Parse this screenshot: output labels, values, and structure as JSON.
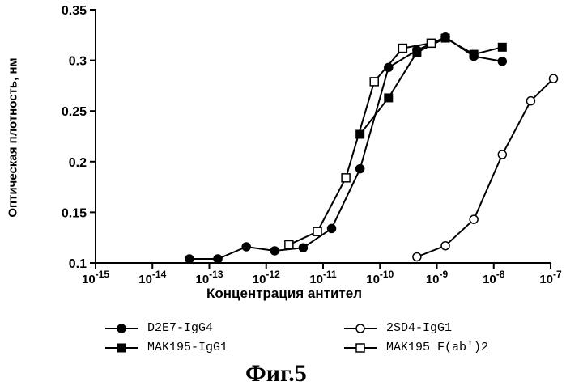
{
  "chart_data": {
    "type": "scatter",
    "xlabel": "Концентрация антител",
    "ylabel": "Оптическая плотность, нм",
    "xscale": "log",
    "xlim_exp": [
      -15,
      -7
    ],
    "x_ticks": [
      {
        "base": "10",
        "exp": "-15"
      },
      {
        "base": "10",
        "exp": "-14"
      },
      {
        "base": "10",
        "exp": "-13"
      },
      {
        "base": "10",
        "exp": "-12"
      },
      {
        "base": "10",
        "exp": "-11"
      },
      {
        "base": "10",
        "exp": "-10"
      },
      {
        "base": "10",
        "exp": "-9"
      },
      {
        "base": "10",
        "exp": "-8"
      },
      {
        "base": "10",
        "exp": "-7"
      }
    ],
    "ylim": [
      0.1,
      0.35
    ],
    "y_ticks": [
      "0.1",
      "0.15",
      "0.2",
      "0.25",
      "0.3",
      "0.35"
    ],
    "grid": false,
    "legend_position": "bottom",
    "series": [
      {
        "name": "D2E7-IgG4",
        "marker": "filled-circle",
        "color": "#000000",
        "x_log10": [
          -13.35,
          -12.85,
          -12.35,
          -11.85,
          -11.35,
          -10.85,
          -10.35,
          -9.85,
          -9.35,
          -8.85,
          -8.35,
          -7.85
        ],
        "y": [
          0.104,
          0.104,
          0.116,
          0.112,
          0.115,
          0.134,
          0.193,
          0.293,
          0.31,
          0.323,
          0.304,
          0.299
        ]
      },
      {
        "name": "MAK195-IgG1",
        "marker": "filled-square",
        "color": "#000000",
        "x_log10": [
          -10.35,
          -9.85,
          -9.35,
          -8.85,
          -8.35,
          -7.85
        ],
        "y": [
          0.227,
          0.263,
          0.308,
          0.322,
          0.306,
          0.313
        ]
      },
      {
        "name": "2SD4-IgG1",
        "marker": "open-circle",
        "color": "#000000",
        "x_log10": [
          -9.35,
          -8.85,
          -8.35,
          -7.85,
          -7.35,
          -6.95
        ],
        "y": [
          0.106,
          0.117,
          0.143,
          0.207,
          0.26,
          0.282
        ]
      },
      {
        "name": "MAK195 F(ab')2",
        "marker": "open-square",
        "color": "#000000",
        "x_log10": [
          -11.6,
          -11.1,
          -10.6,
          -10.1,
          -9.6,
          -9.1
        ],
        "y": [
          0.118,
          0.131,
          0.184,
          0.279,
          0.312,
          0.317
        ]
      }
    ]
  },
  "caption": "Фиг.5"
}
